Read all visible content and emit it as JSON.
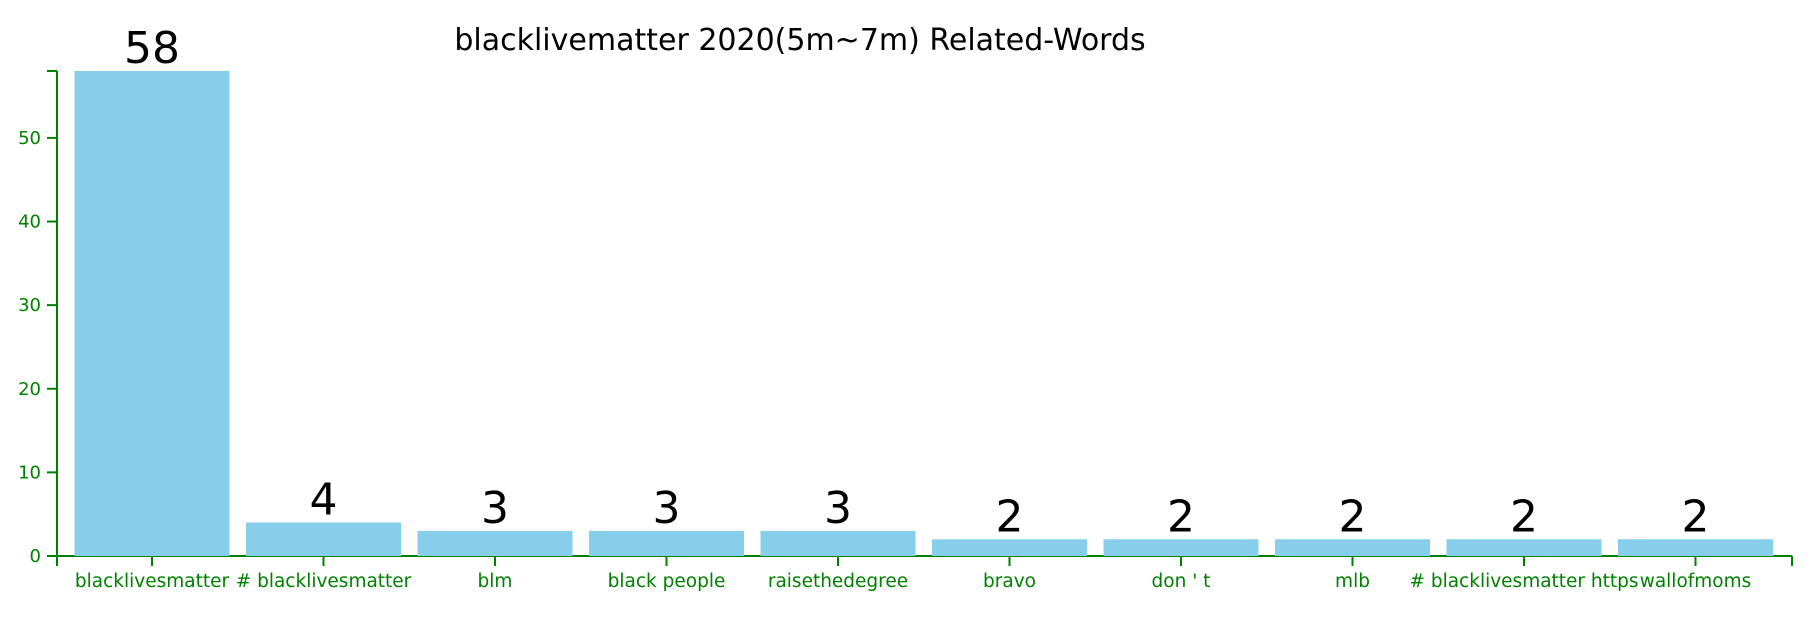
{
  "chart_data": {
    "type": "bar",
    "title": "blacklivematter 2020(5m~7m) Related-Words",
    "xlabel": "",
    "ylabel": "",
    "categories": [
      "blacklivesmatter",
      "# blacklivesmatter",
      "blm",
      "black people",
      "raisethedegree",
      "bravo",
      "don ' t",
      "mlb",
      "# blacklivesmatter https",
      "wallofmoms"
    ],
    "values": [
      58,
      4,
      3,
      3,
      3,
      2,
      2,
      2,
      2,
      2
    ],
    "data_labels": [
      "58",
      "4",
      "3",
      "3",
      "3",
      "2",
      "2",
      "2",
      "2",
      "2"
    ],
    "yticks": [
      0,
      10,
      20,
      30,
      40,
      50
    ],
    "ytick_labels": [
      "0",
      "10",
      "20",
      "30",
      "40",
      "50"
    ],
    "ylim": [
      0,
      58
    ],
    "grid": false,
    "legend": "none",
    "colors": {
      "bar": "#87ceeb",
      "axis": "#008000",
      "text": "#000000"
    }
  }
}
